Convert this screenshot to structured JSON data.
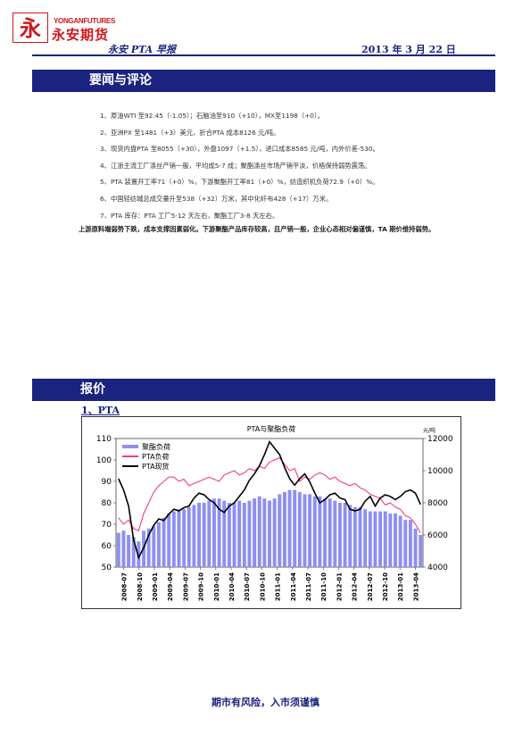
{
  "header": {
    "logo_en": "YONGANFUTURES",
    "logo_cn": "永安期货",
    "logo_mark": "永",
    "title": "永安 PTA 早报",
    "date": "2013 年 3 月 22 日"
  },
  "sections": {
    "news_title": "要闻与评论",
    "quote_title": "报价",
    "pta_subtitle": "1、PTA"
  },
  "news_items": [
    "1、原油WTI 至92.45（-1.05）；石脑油至910（+10），MX至1198（+0）。",
    "2、亚洲PX 至1481（+3）美元，折合PTA 成本8126 元/吨。",
    "3、现货内盘PTA 至8055（+30），外盘1097（+1.5），进口成本8585 元/吨，内外价差-530。",
    "4、江浙主流工厂涤丝产销一般，平均成5-7 成；聚酯涤丝市场产销平淡，价格保持弱势震荡。",
    "5、PTA 装置开工率71（+0）%，下游聚酯开工率81（+0）%，纺造织机负荷72.9（+0）%。",
    "6、中国轻纺城总成交量升至538（+32）万米，其中化纤布428（+17）万米。",
    "7、PTA 库存：PTA 工厂5-12 天左右，聚酯工厂3-8 天左右。"
  ],
  "summary": "上游原料端弱势下跌，成本支撑因素弱化。下游聚酯产品库存较高，且产销一般，企业心态相对偏谨慎，TA 期价维持弱势。",
  "chart_data": {
    "type": "line",
    "title": "PTA与聚酯负荷",
    "ylabel_right": "元/吨",
    "x_ticks": [
      "2008-07",
      "2008-10",
      "2009-01",
      "2009-04",
      "2009-07",
      "2009-10",
      "2010-01",
      "2010-04",
      "2010-07",
      "2010-10",
      "2011-01",
      "2011-04",
      "2011-07",
      "2011-10",
      "2012-01",
      "2012-04",
      "2012-07",
      "2012-10",
      "2013-01",
      "2013-04"
    ],
    "ylim_left": [
      50,
      110
    ],
    "y_ticks_left": [
      50,
      60,
      70,
      80,
      90,
      100,
      110
    ],
    "ylim_right": [
      4000,
      12000
    ],
    "y_ticks_right": [
      4000,
      6000,
      8000,
      10000,
      12000
    ],
    "legend_position": "top-left",
    "series": [
      {
        "name": "聚酯负荷",
        "kind": "bar",
        "axis": "left",
        "color": "#8f8ff0",
        "values": [
          66,
          67,
          65,
          64,
          62,
          67,
          68,
          69,
          71,
          73,
          75,
          76,
          77,
          77,
          78,
          79,
          80,
          80,
          81,
          82,
          82,
          81,
          80,
          80,
          81,
          80,
          81,
          82,
          83,
          82,
          81,
          82,
          84,
          85,
          86,
          86,
          85,
          84,
          84,
          83,
          83,
          82,
          82,
          81,
          80,
          80,
          79,
          78,
          78,
          77,
          76,
          76,
          76,
          76,
          75,
          75,
          74,
          72,
          72,
          68,
          65
        ]
      },
      {
        "name": "PTA负荷",
        "kind": "line",
        "axis": "left",
        "color": "#ee3d8c",
        "values": [
          73,
          70,
          72,
          68,
          67,
          75,
          80,
          85,
          88,
          90,
          92,
          92,
          90,
          91,
          88,
          89,
          90,
          91,
          92,
          91,
          90,
          93,
          94,
          95,
          93,
          94,
          96,
          95,
          97,
          96,
          99,
          100,
          101,
          98,
          95,
          96,
          90,
          92,
          91,
          93,
          94,
          93,
          91,
          92,
          90,
          89,
          88,
          89,
          87,
          86,
          84,
          83,
          82,
          79,
          80,
          78,
          77,
          74,
          73,
          70,
          66
        ]
      },
      {
        "name": "PTA现货",
        "kind": "line",
        "axis": "right",
        "color": "#000000",
        "values": [
          9500,
          8800,
          7800,
          5700,
          4600,
          5200,
          6000,
          6600,
          7000,
          6900,
          7300,
          7600,
          7500,
          7700,
          7800,
          8300,
          8600,
          8500,
          8200,
          8000,
          7600,
          7400,
          7800,
          8000,
          8400,
          8800,
          9400,
          9800,
          10300,
          11000,
          11800,
          11400,
          11000,
          10200,
          9500,
          9100,
          9500,
          9800,
          9300,
          8600,
          8000,
          8200,
          8500,
          8600,
          8300,
          8200,
          7600,
          7500,
          7600,
          8100,
          8400,
          7800,
          8300,
          8500,
          8400,
          8200,
          8400,
          8700,
          8800,
          8600,
          7900
        ]
      }
    ]
  },
  "footer": {
    "slogan": "期市有风险，入市须谨慎"
  }
}
